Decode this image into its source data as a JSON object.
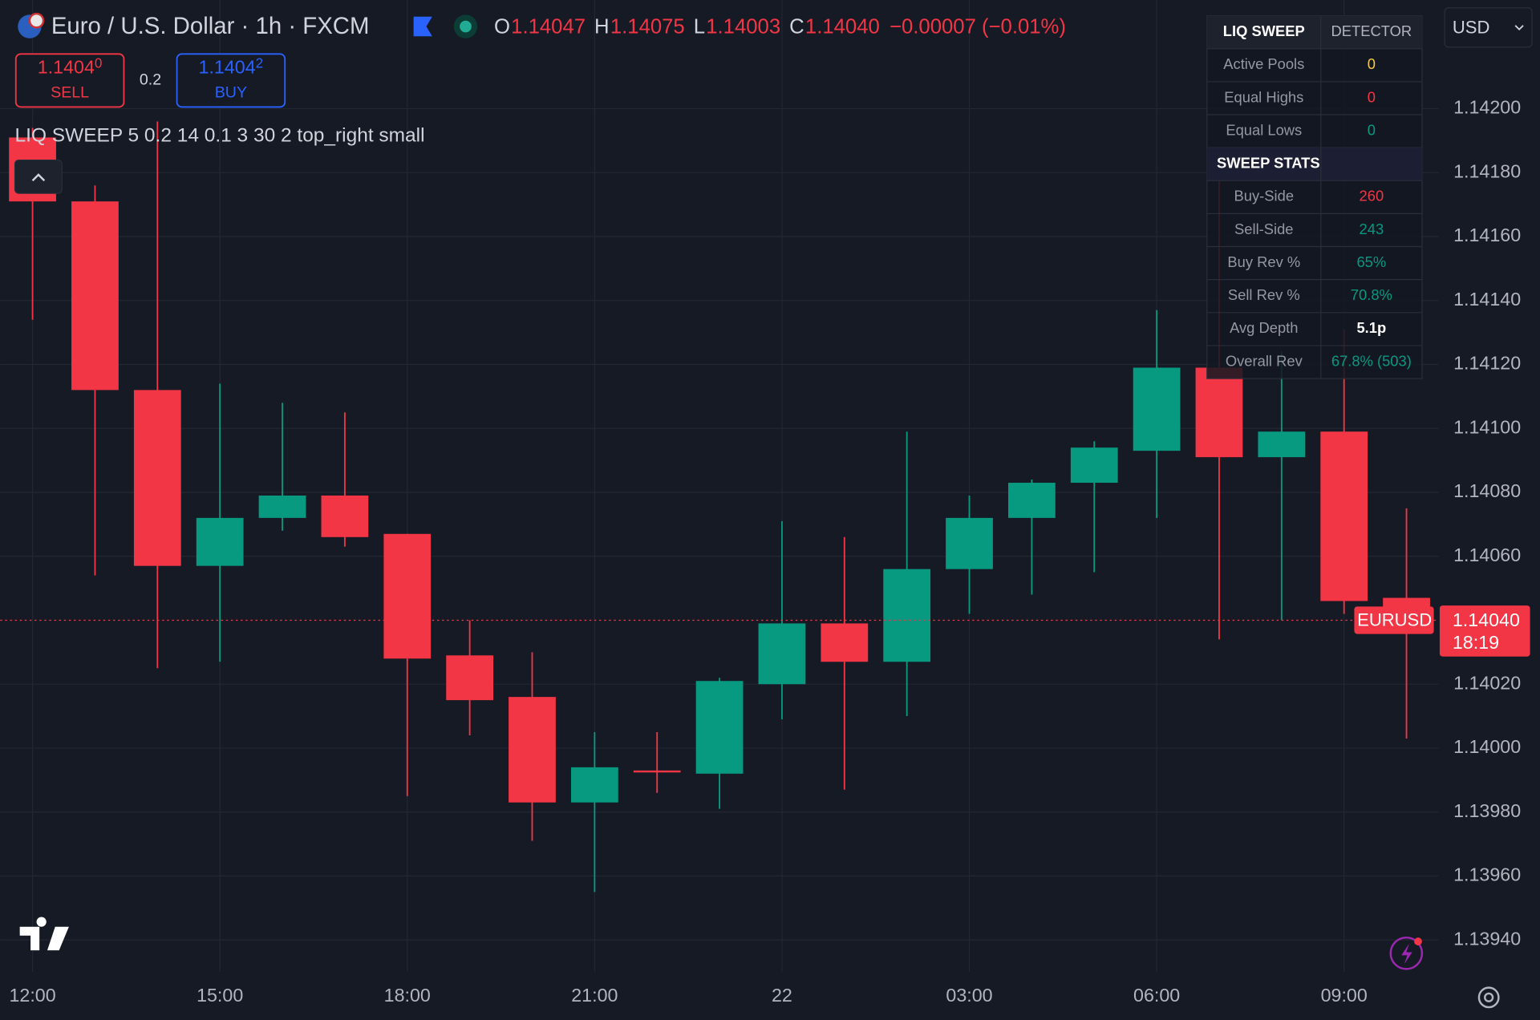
{
  "header": {
    "symbol": "Euro / U.S. Dollar · 1h · FXCM",
    "ohlc": [
      {
        "key": "O",
        "value": "1.14047"
      },
      {
        "key": "H",
        "value": "1.14075"
      },
      {
        "key": "L",
        "value": "1.14003"
      },
      {
        "key": "C",
        "value": "1.14040"
      }
    ],
    "change": "−0.00007 (−0.01%)"
  },
  "trade": {
    "sell_price": "1.1404",
    "sell_pip": "0",
    "sell": "SELL",
    "spread": "0.2",
    "buy_price": "1.1404",
    "buy_pip": "2",
    "buy": "BUY"
  },
  "indicator": "LIQ SWEEP 5 0.2 14 0.1 3 30 2 top_right small",
  "currency": "USD",
  "table": {
    "header": [
      "LIQ SWEEP",
      "DETECTOR"
    ],
    "rows": [
      [
        "Active Pools",
        "0"
      ],
      [
        "Equal Highs",
        "0"
      ],
      [
        "Equal Lows",
        "0"
      ],
      [
        "SWEEP STATS"
      ],
      [
        "Buy-Side",
        "260"
      ],
      [
        "Sell-Side",
        "243"
      ],
      [
        "Buy Rev %",
        "65%"
      ],
      [
        "Sell Rev %",
        "70.8%"
      ],
      [
        "Avg Depth",
        "5.1p"
      ],
      [
        "Overall Rev",
        "67.8% (503)"
      ]
    ]
  },
  "chart_data": {
    "type": "candlestick",
    "categories": [
      "12:00",
      null,
      null,
      "15:00",
      null,
      null,
      "18:00",
      null,
      null,
      "21:00",
      null,
      null,
      "22",
      null,
      null,
      "03:00",
      null,
      null,
      "06:00",
      null,
      null,
      "09:00",
      null
    ],
    "open": [
      1.14191,
      1.14171,
      1.14112,
      1.14057,
      1.14072,
      1.14079,
      1.14067,
      1.14029,
      1.14016,
      1.13983,
      1.13993,
      1.13992,
      1.1402,
      1.14039,
      1.14027,
      1.14056,
      1.14072,
      1.14083,
      1.14093,
      1.14119,
      1.14091,
      1.14099,
      1.14047
    ],
    "high": [
      1.14194,
      1.14176,
      1.14196,
      1.14114,
      1.14108,
      1.14105,
      1.14067,
      1.1404,
      1.1403,
      1.14005,
      1.14005,
      1.14022,
      1.14071,
      1.14066,
      1.14099,
      1.14079,
      1.14084,
      1.14096,
      1.14137,
      1.14185,
      1.14124,
      1.14131,
      1.14075
    ],
    "low": [
      1.14134,
      1.14054,
      1.14025,
      1.14027,
      1.14068,
      1.14063,
      1.13985,
      1.14004,
      1.13971,
      1.13955,
      1.13986,
      1.13981,
      1.14009,
      1.13987,
      1.1401,
      1.14042,
      1.14048,
      1.14055,
      1.14072,
      1.14034,
      1.1404,
      1.14042,
      1.14003
    ],
    "close": [
      1.14171,
      1.14112,
      1.14057,
      1.14072,
      1.14079,
      1.14066,
      1.14028,
      1.14015,
      1.13983,
      1.13994,
      1.13993,
      1.14021,
      1.14039,
      1.14027,
      1.14056,
      1.14072,
      1.14083,
      1.14094,
      1.14119,
      1.14091,
      1.14099,
      1.14046,
      1.1404
    ],
    "up_color": "#089981",
    "down_color": "#f23645",
    "ylim": [
      1.1393,
      1.14234
    ],
    "yticks": [
      {
        "value": 1.142,
        "label": "1.14200"
      },
      {
        "value": 1.1418,
        "label": "1.14180"
      },
      {
        "value": 1.1416,
        "label": "1.14160"
      },
      {
        "value": 1.1414,
        "label": "1.14140"
      },
      {
        "value": 1.1412,
        "label": "1.14120"
      },
      {
        "value": 1.141,
        "label": "1.14100"
      },
      {
        "value": 1.1408,
        "label": "1.14080"
      },
      {
        "value": 1.1406,
        "label": "1.14060"
      },
      {
        "value": 1.1402,
        "label": "1.14020"
      },
      {
        "value": 1.14,
        "label": "1.14000"
      },
      {
        "value": 1.1398,
        "label": "1.13980"
      },
      {
        "value": 1.1396,
        "label": "1.13960"
      },
      {
        "value": 1.1394,
        "label": "1.13940"
      }
    ],
    "grid": true,
    "last_price": {
      "value": 1.1404,
      "label": "1.14040"
    },
    "symbol_label": "EURUSD",
    "countdown": "18:19"
  }
}
